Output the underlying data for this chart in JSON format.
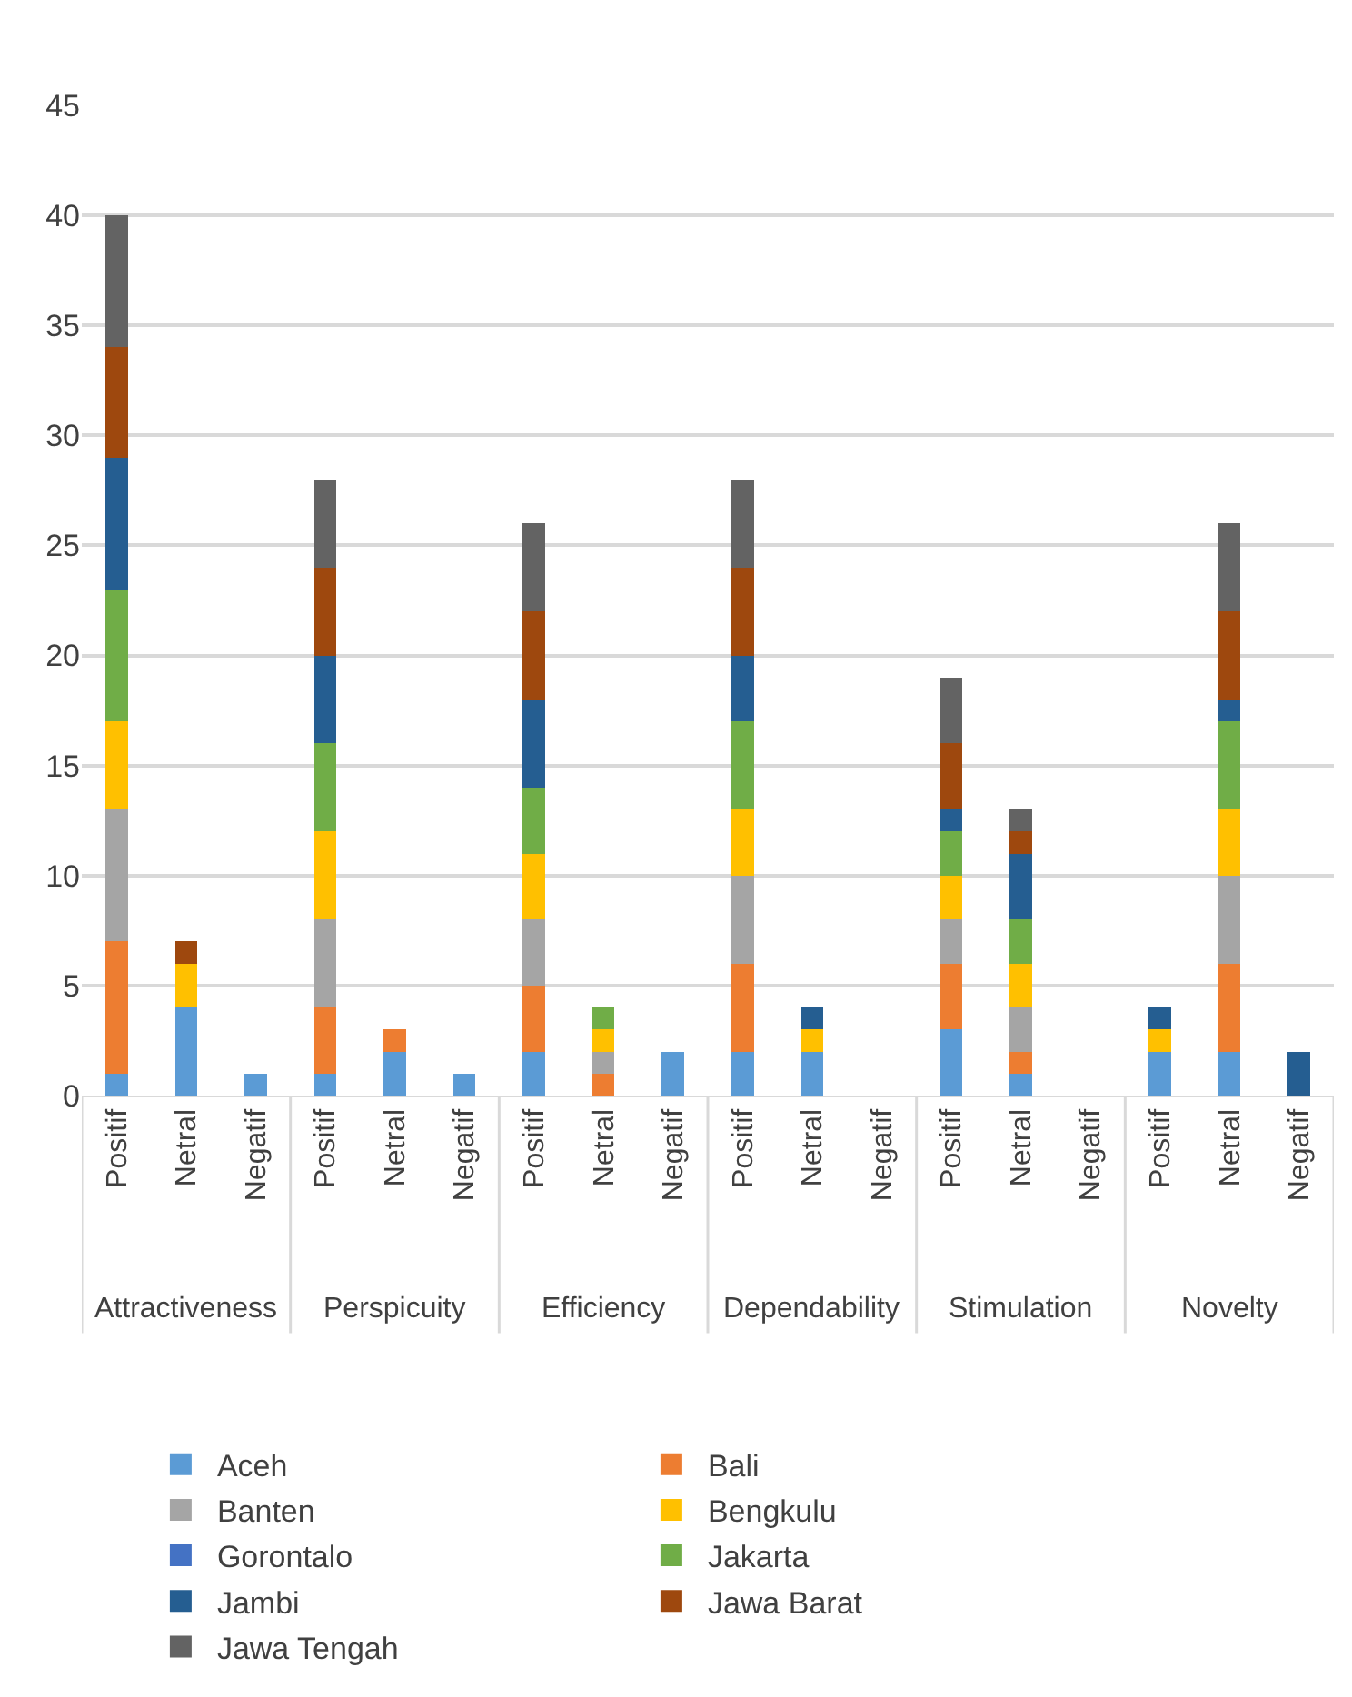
{
  "chart_data": {
    "type": "bar",
    "stacked": true,
    "categories": [
      "Positif",
      "Netral",
      "Negatif",
      "Positif",
      "Netral",
      "Negatif",
      "Positif",
      "Netral",
      "Negatif",
      "Positif",
      "Netral",
      "Negatif",
      "Positif",
      "Netral",
      "Negatif",
      "Positif",
      "Netral",
      "Negatif"
    ],
    "annotations": [
      "Attractiveness",
      "Perspicuity",
      "Efficiency",
      "Dependability",
      "Stimulation",
      "Novelty"
    ],
    "ylim": [
      0,
      45
    ],
    "yticks": [
      0,
      5,
      10,
      15,
      20,
      25,
      30,
      35,
      40,
      45
    ],
    "grid": "y",
    "legend": "bottom",
    "series": [
      {
        "name": "Aceh",
        "color": "#5b9bd5",
        "values": [
          1,
          4,
          1,
          1,
          2,
          1,
          2,
          0,
          2,
          2,
          2,
          0,
          3,
          1,
          0,
          2,
          2,
          0
        ]
      },
      {
        "name": "Bali",
        "color": "#ed7d31",
        "values": [
          6,
          0,
          0,
          3,
          1,
          0,
          3,
          1,
          0,
          4,
          0,
          0,
          3,
          1,
          0,
          0,
          4,
          0
        ]
      },
      {
        "name": "Banten",
        "color": "#a5a5a5",
        "values": [
          6,
          0,
          0,
          4,
          0,
          0,
          3,
          1,
          0,
          4,
          0,
          0,
          2,
          2,
          0,
          0,
          4,
          0
        ]
      },
      {
        "name": "Bengkulu",
        "color": "#ffc000",
        "values": [
          4,
          2,
          0,
          4,
          0,
          0,
          3,
          1,
          0,
          3,
          1,
          0,
          2,
          2,
          0,
          1,
          3,
          0
        ]
      },
      {
        "name": "Gorontalo",
        "color": "#4472c4",
        "values": [
          0,
          0,
          0,
          0,
          0,
          0,
          0,
          0,
          0,
          0,
          0,
          0,
          0,
          0,
          0,
          0,
          0,
          0
        ]
      },
      {
        "name": "Jakarta",
        "color": "#70ad47",
        "values": [
          6,
          0,
          0,
          4,
          0,
          0,
          3,
          1,
          0,
          4,
          0,
          0,
          2,
          2,
          0,
          0,
          4,
          0
        ]
      },
      {
        "name": "Jambi",
        "color": "#255e91",
        "values": [
          6,
          0,
          0,
          4,
          0,
          0,
          4,
          0,
          0,
          3,
          1,
          0,
          1,
          3,
          0,
          1,
          1,
          2
        ]
      },
      {
        "name": "Jawa Barat",
        "color": "#9e480e",
        "values": [
          5,
          1,
          0,
          4,
          0,
          0,
          4,
          0,
          0,
          4,
          0,
          0,
          3,
          1,
          0,
          0,
          4,
          0
        ]
      },
      {
        "name": "Jawa Tengah",
        "color": "#636363",
        "values": [
          6,
          0,
          0,
          4,
          0,
          0,
          4,
          0,
          0,
          4,
          0,
          0,
          3,
          1,
          0,
          0,
          4,
          0
        ]
      }
    ]
  }
}
